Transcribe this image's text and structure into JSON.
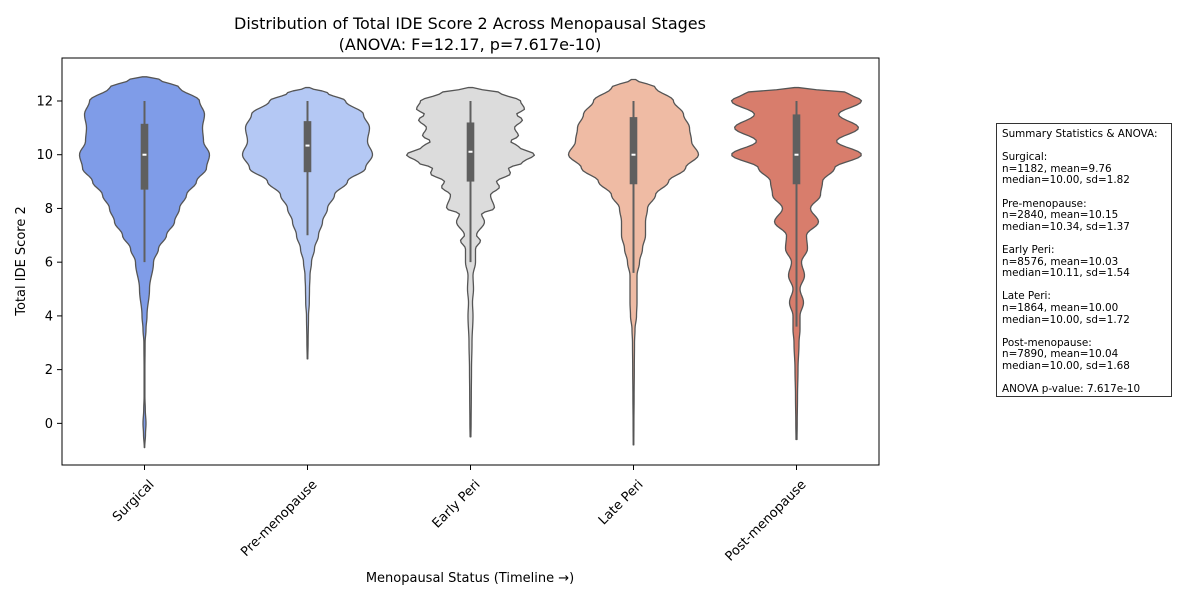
{
  "chart_data": {
    "type": "violin",
    "title_line1": "Distribution of Total IDE Score 2 Across Menopausal Stages",
    "title_line2": "(ANOVA: F=12.17, p=7.617e-10)",
    "xlabel": "Menopausal Status (Timeline →)",
    "ylabel": "Total IDE Score 2",
    "ylim": [
      -1.55,
      13.6
    ],
    "yticks": [
      0,
      2,
      4,
      6,
      8,
      10,
      12
    ],
    "grid": false,
    "categories": [
      "Surgical",
      "Pre-menopause",
      "Early Peri",
      "Late Peri",
      "Post-menopause"
    ],
    "colors": [
      "#7f9ce8",
      "#b4c8f4",
      "#dcdcdc",
      "#efbba4",
      "#d87d6c"
    ],
    "series": [
      {
        "category": "Surgical",
        "n": 1182,
        "mean": 9.76,
        "median": 10.0,
        "sd": 1.82,
        "q1": 8.7,
        "q3": 11.15,
        "whisker_low": 6.0,
        "whisker_high": 12.0,
        "min": -0.9,
        "max": 12.9,
        "density_y": [
          -0.9,
          -0.4,
          0.0,
          0.5,
          1.0,
          2.0,
          3.0,
          3.5,
          4.0,
          5.0,
          6.0,
          6.5,
          7.0,
          7.5,
          8.0,
          8.5,
          9.0,
          9.5,
          10.0,
          10.5,
          11.0,
          11.5,
          12.0,
          12.5,
          12.8,
          12.9
        ],
        "density_w": [
          0.2,
          1.0,
          1.5,
          0.8,
          0.4,
          0.4,
          0.6,
          1.5,
          2.5,
          5.0,
          9.0,
          14.0,
          22.0,
          30.0,
          35.0,
          42.0,
          52.0,
          62.0,
          65.0,
          59.0,
          58.0,
          60.0,
          55.0,
          35.0,
          15.0,
          2.0
        ]
      },
      {
        "category": "Pre-menopause",
        "n": 2840,
        "mean": 10.15,
        "median": 10.34,
        "sd": 1.37,
        "q1": 9.35,
        "q3": 11.25,
        "whisker_low": 7.0,
        "whisker_high": 12.0,
        "min": 2.4,
        "max": 12.5,
        "density_y": [
          2.4,
          3.0,
          4.0,
          4.5,
          5.0,
          5.5,
          6.0,
          6.5,
          7.0,
          7.5,
          8.0,
          8.5,
          9.0,
          9.5,
          10.0,
          10.5,
          11.0,
          11.5,
          12.0,
          12.3,
          12.5
        ],
        "density_w": [
          0.3,
          0.6,
          1.0,
          1.8,
          2.0,
          2.5,
          4.0,
          7.0,
          11.0,
          15.0,
          20.0,
          27.0,
          40.0,
          58.0,
          65.0,
          60.0,
          62.0,
          56.0,
          38.0,
          20.0,
          2.0
        ]
      },
      {
        "category": "Early Peri",
        "n": 8576,
        "mean": 10.03,
        "median": 10.11,
        "sd": 1.54,
        "q1": 9.0,
        "q3": 11.2,
        "whisker_low": 6.0,
        "whisker_high": 12.0,
        "min": -0.5,
        "max": 12.5,
        "density_y": [
          -0.5,
          0.0,
          1.0,
          2.0,
          3.0,
          4.0,
          4.5,
          5.0,
          5.5,
          6.0,
          6.5,
          6.8,
          7.0,
          7.5,
          7.8,
          8.0,
          8.5,
          8.8,
          9.0,
          9.3,
          9.5,
          9.7,
          10.0,
          10.3,
          10.5,
          10.7,
          11.0,
          11.3,
          11.5,
          11.7,
          12.0,
          12.3,
          12.5
        ],
        "density_w": [
          0.4,
          0.6,
          0.8,
          1.0,
          1.5,
          2.5,
          2.0,
          3.0,
          2.5,
          5.0,
          5.0,
          10.0,
          6.0,
          14.0,
          11.0,
          24.0,
          20.0,
          29.0,
          26.0,
          40.0,
          38.0,
          52.0,
          64.0,
          48.0,
          40.0,
          48.0,
          44.0,
          52.0,
          46.0,
          54.0,
          50.0,
          30.0,
          2.0
        ]
      },
      {
        "category": "Late Peri",
        "n": 1864,
        "mean": 10.0,
        "median": 10.0,
        "sd": 1.72,
        "q1": 8.9,
        "q3": 11.4,
        "whisker_low": 5.6,
        "whisker_high": 12.0,
        "min": -0.8,
        "max": 12.8,
        "density_y": [
          -0.8,
          0.0,
          1.0,
          2.0,
          3.0,
          3.5,
          4.0,
          4.5,
          5.0,
          5.5,
          6.0,
          6.5,
          7.0,
          7.5,
          8.0,
          8.5,
          9.0,
          9.5,
          10.0,
          10.5,
          11.0,
          11.5,
          12.0,
          12.5,
          12.8
        ],
        "density_w": [
          0.3,
          0.4,
          0.6,
          0.8,
          1.0,
          1.5,
          3.0,
          3.5,
          3.5,
          3.5,
          6.0,
          9.0,
          12.0,
          12.0,
          14.0,
          22.0,
          35.0,
          52.0,
          65.0,
          58.0,
          56.0,
          50.0,
          40.0,
          22.0,
          2.0
        ]
      },
      {
        "category": "Post-menopause",
        "n": 7890,
        "mean": 10.04,
        "median": 10.0,
        "sd": 1.68,
        "q1": 8.9,
        "q3": 11.5,
        "whisker_low": 3.6,
        "whisker_high": 12.0,
        "min": -0.6,
        "max": 12.5,
        "density_y": [
          -0.6,
          0.0,
          1.0,
          2.0,
          3.0,
          3.5,
          4.0,
          4.5,
          5.0,
          5.5,
          6.0,
          6.5,
          7.0,
          7.5,
          8.0,
          8.5,
          9.0,
          9.5,
          10.0,
          10.5,
          11.0,
          11.5,
          12.0,
          12.3,
          12.5
        ],
        "density_w": [
          0.5,
          0.7,
          1.0,
          1.5,
          2.5,
          3.5,
          3.5,
          7.0,
          3.5,
          8.0,
          5.0,
          11.0,
          10.0,
          22.0,
          14.0,
          24.0,
          26.0,
          38.0,
          65.0,
          40.0,
          62.0,
          42.0,
          65.0,
          52.0,
          2.0
        ]
      }
    ]
  },
  "stats_box": {
    "lines": [
      "Summary Statistics & ANOVA:",
      "",
      "Surgical:",
      "n=1182, mean=9.76",
      "median=10.00, sd=1.82",
      "",
      "Pre-menopause:",
      "n=2840, mean=10.15",
      "median=10.34, sd=1.37",
      "",
      "Early Peri:",
      "n=8576, mean=10.03",
      "median=10.11, sd=1.54",
      "",
      "Late Peri:",
      "n=1864, mean=10.00",
      "median=10.00, sd=1.72",
      "",
      "Post-menopause:",
      "n=7890, mean=10.04",
      "median=10.00, sd=1.68",
      "",
      "ANOVA p-value: 7.617e-10"
    ]
  }
}
